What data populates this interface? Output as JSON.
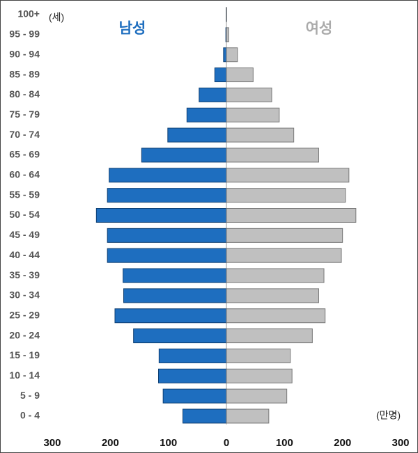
{
  "chart_data": {
    "type": "pyramid",
    "y_unit": "(세)",
    "x_unit": "(만명)",
    "categories": [
      "100+",
      "95 - 99",
      "90 - 94",
      "85 - 89",
      "80 - 84",
      "75 - 79",
      "70 - 74",
      "65 - 69",
      "60 - 64",
      "55 - 59",
      "50 - 54",
      "45 - 49",
      "40 - 44",
      "35 - 39",
      "30 - 34",
      "25 - 29",
      "20 - 24",
      "15 - 19",
      "10 - 14",
      "5 - 9",
      "0 - 4"
    ],
    "series": [
      {
        "name": "남성",
        "side": "left",
        "color": "#1e6ebf",
        "values": [
          0.3,
          1,
          5,
          20,
          47,
          68,
          101,
          146,
          202,
          205,
          224,
          205,
          205,
          178,
          177,
          192,
          160,
          116,
          117,
          109,
          75
        ]
      },
      {
        "name": "여성",
        "side": "right",
        "color": "#c0c0c0",
        "values": [
          0.5,
          4,
          19,
          46,
          78,
          91,
          116,
          159,
          211,
          205,
          223,
          200,
          198,
          168,
          159,
          170,
          148,
          110,
          113,
          104,
          73
        ]
      }
    ],
    "xlim": [
      -300,
      300
    ],
    "xticks": [
      {
        "value": -300,
        "label": "300"
      },
      {
        "value": -200,
        "label": "200"
      },
      {
        "value": -100,
        "label": "100"
      },
      0,
      100,
      200,
      300
    ]
  }
}
